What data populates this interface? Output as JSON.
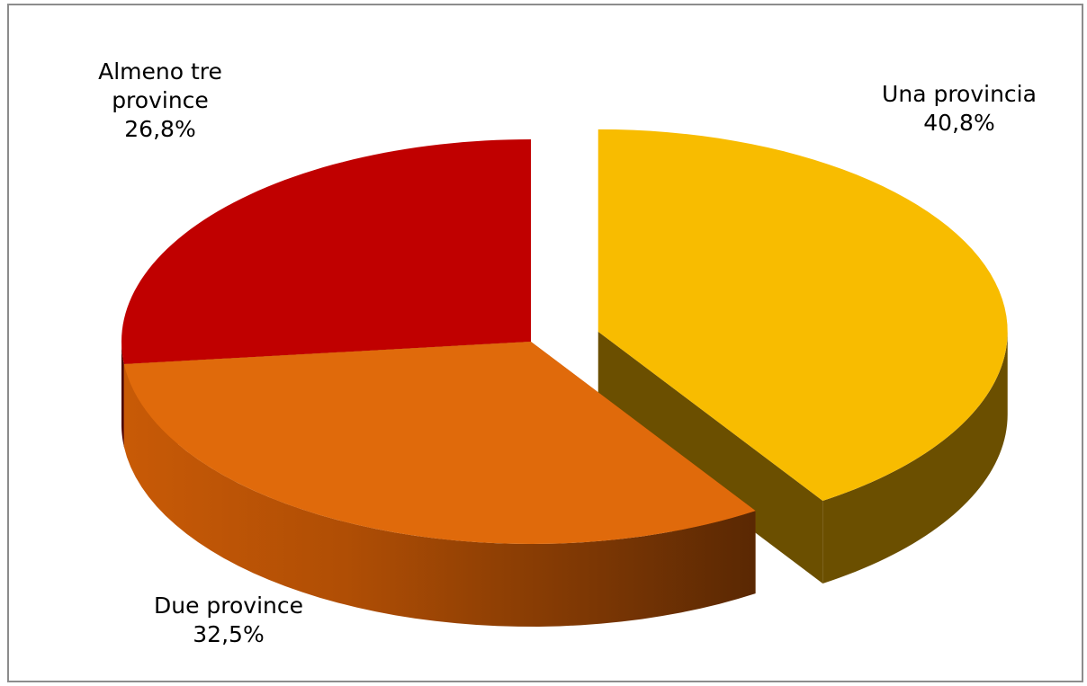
{
  "chart_data": {
    "type": "pie",
    "title": "",
    "slices": [
      {
        "label_lines": [
          "Una provincia"
        ],
        "value": 40.8,
        "value_label": "40,8%",
        "color": "#f8bc00",
        "side_color": "#6b4f00"
      },
      {
        "label_lines": [
          "Due province"
        ],
        "value": 32.5,
        "value_label": "32,5%",
        "color": "#e06a0b",
        "side_color": "#b8560a"
      },
      {
        "label_lines": [
          "Almeno tre",
          "province"
        ],
        "value": 26.8,
        "value_label": "26,8%",
        "color": "#c00000",
        "side_color": "#4e0000"
      }
    ],
    "exploded": "Una provincia",
    "style": "3d-pie",
    "legend": "none",
    "data_labels": "outside"
  }
}
